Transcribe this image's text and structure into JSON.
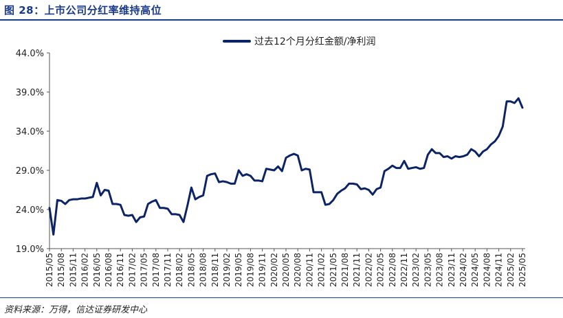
{
  "figure": {
    "title": "图 28：上市公司分红率维持高位",
    "source": "资料来源：万得，信达证券研发中心"
  },
  "colors": {
    "accent": "#1a3a8a",
    "series": "#0c2466"
  },
  "chart_data": {
    "type": "line",
    "title": "",
    "xlabel": "",
    "ylabel": "",
    "ylim": [
      19.0,
      44.0
    ],
    "y_ticks": [
      "19.0%",
      "24.0%",
      "29.0%",
      "34.0%",
      "39.0%",
      "44.0%"
    ],
    "grid": false,
    "legend_position": "top-center",
    "x_tick_labels": [
      "2015/05",
      "2015/08",
      "2015/11",
      "2016/02",
      "2016/05",
      "2016/08",
      "2016/11",
      "2017/02",
      "2017/05",
      "2017/08",
      "2017/11",
      "2018/02",
      "2018/05",
      "2018/08",
      "2018/11",
      "2019/02",
      "2019/05",
      "2019/08",
      "2019/11",
      "2020/02",
      "2020/05",
      "2020/08",
      "2020/11",
      "2021/02",
      "2021/05",
      "2021/08",
      "2021/11",
      "2022/02",
      "2022/05",
      "2022/08",
      "2022/11",
      "2023/02",
      "2023/05",
      "2023/08",
      "2023/11",
      "2024/02",
      "2024/05",
      "2024/08",
      "2024/11",
      "2025/02",
      "2025/05"
    ],
    "series": [
      {
        "name": "过去12个月分红金额/净利润",
        "start": "2015/05",
        "values": [
          24.2,
          20.8,
          25.2,
          25.1,
          24.7,
          25.2,
          25.3,
          25.3,
          25.4,
          25.4,
          25.5,
          25.6,
          27.4,
          25.8,
          26.5,
          26.4,
          24.7,
          24.7,
          24.6,
          23.3,
          23.2,
          23.3,
          22.4,
          23.0,
          23.1,
          24.7,
          25.0,
          25.2,
          24.2,
          24.2,
          24.1,
          23.4,
          23.4,
          23.3,
          22.4,
          24.5,
          26.8,
          25.3,
          25.6,
          25.8,
          28.3,
          28.5,
          28.6,
          27.5,
          27.6,
          27.5,
          27.3,
          27.3,
          29.0,
          28.3,
          28.5,
          28.3,
          27.7,
          27.7,
          27.6,
          29.2,
          29.1,
          29.0,
          29.5,
          28.9,
          30.6,
          30.9,
          31.1,
          30.9,
          29.0,
          29.2,
          29.1,
          26.2,
          26.2,
          26.2,
          24.6,
          24.7,
          25.2,
          26.0,
          26.4,
          26.7,
          27.3,
          27.3,
          27.2,
          26.6,
          26.7,
          26.5,
          25.9,
          26.6,
          26.8,
          28.9,
          29.2,
          29.6,
          29.3,
          29.3,
          30.2,
          29.2,
          29.3,
          29.4,
          29.2,
          29.3,
          31.0,
          31.7,
          31.2,
          31.2,
          30.7,
          30.8,
          30.5,
          30.8,
          30.7,
          30.8,
          31.0,
          31.7,
          31.4,
          30.8,
          31.4,
          31.7,
          32.3,
          32.7,
          33.4,
          34.6,
          37.8,
          37.8,
          37.6,
          38.2,
          37.0
        ]
      }
    ]
  }
}
